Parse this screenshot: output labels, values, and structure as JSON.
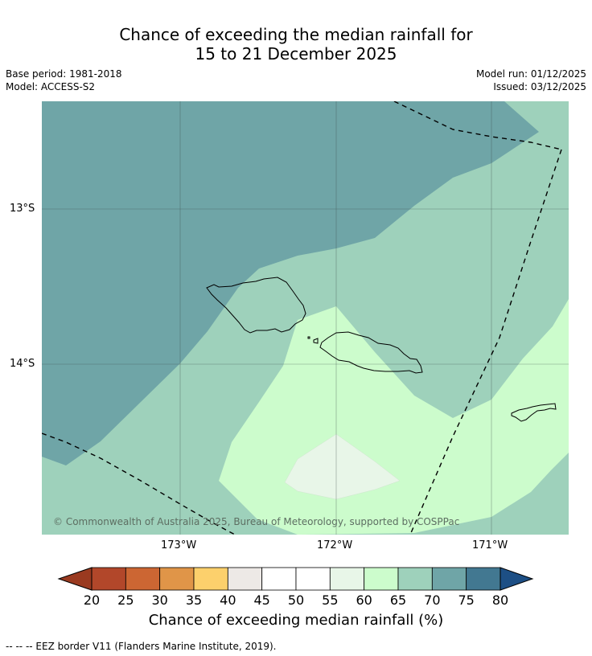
{
  "title": {
    "line1": "Chance of exceeding the median rainfall for",
    "line2": "15 to 21 December 2025"
  },
  "meta": {
    "base_period": "Base period: 1981-2018",
    "model": "Model: ACCESS-S2",
    "model_run": "Model run: 01/12/2025",
    "issued": "Issued: 03/12/2025"
  },
  "map": {
    "lat_labels": [
      "13°S",
      "14°S"
    ],
    "lon_labels": [
      "173°W",
      "172°W",
      "171°W"
    ],
    "copyright": "© Commonwealth of Australia 2025, Bureau of Meteorology, supported by COSPPac",
    "region_probabilities": {
      "north_west": "70-75",
      "central_band": "65-70",
      "southern_band": "60-65",
      "small_centre": "55-60"
    }
  },
  "colorbar": {
    "ticks": [
      "20",
      "25",
      "30",
      "35",
      "40",
      "45",
      "50",
      "55",
      "60",
      "65",
      "70",
      "75",
      "80"
    ],
    "colors": [
      "#b2472a",
      "#cc6633",
      "#e09548",
      "#fcd06c",
      "#ede9e6",
      "#ffffff",
      "#ffffff",
      "#e8f6e8",
      "#ccfccc",
      "#9ed1bb",
      "#6fa5a7",
      "#427891"
    ],
    "under_color": "#9a3a20",
    "over_color": "#1d4f85",
    "title": "Chance of exceeding median rainfall (%)"
  },
  "footer": "--  --  -- EEZ border V11 (Flanders Marine Institute, 2019)."
}
